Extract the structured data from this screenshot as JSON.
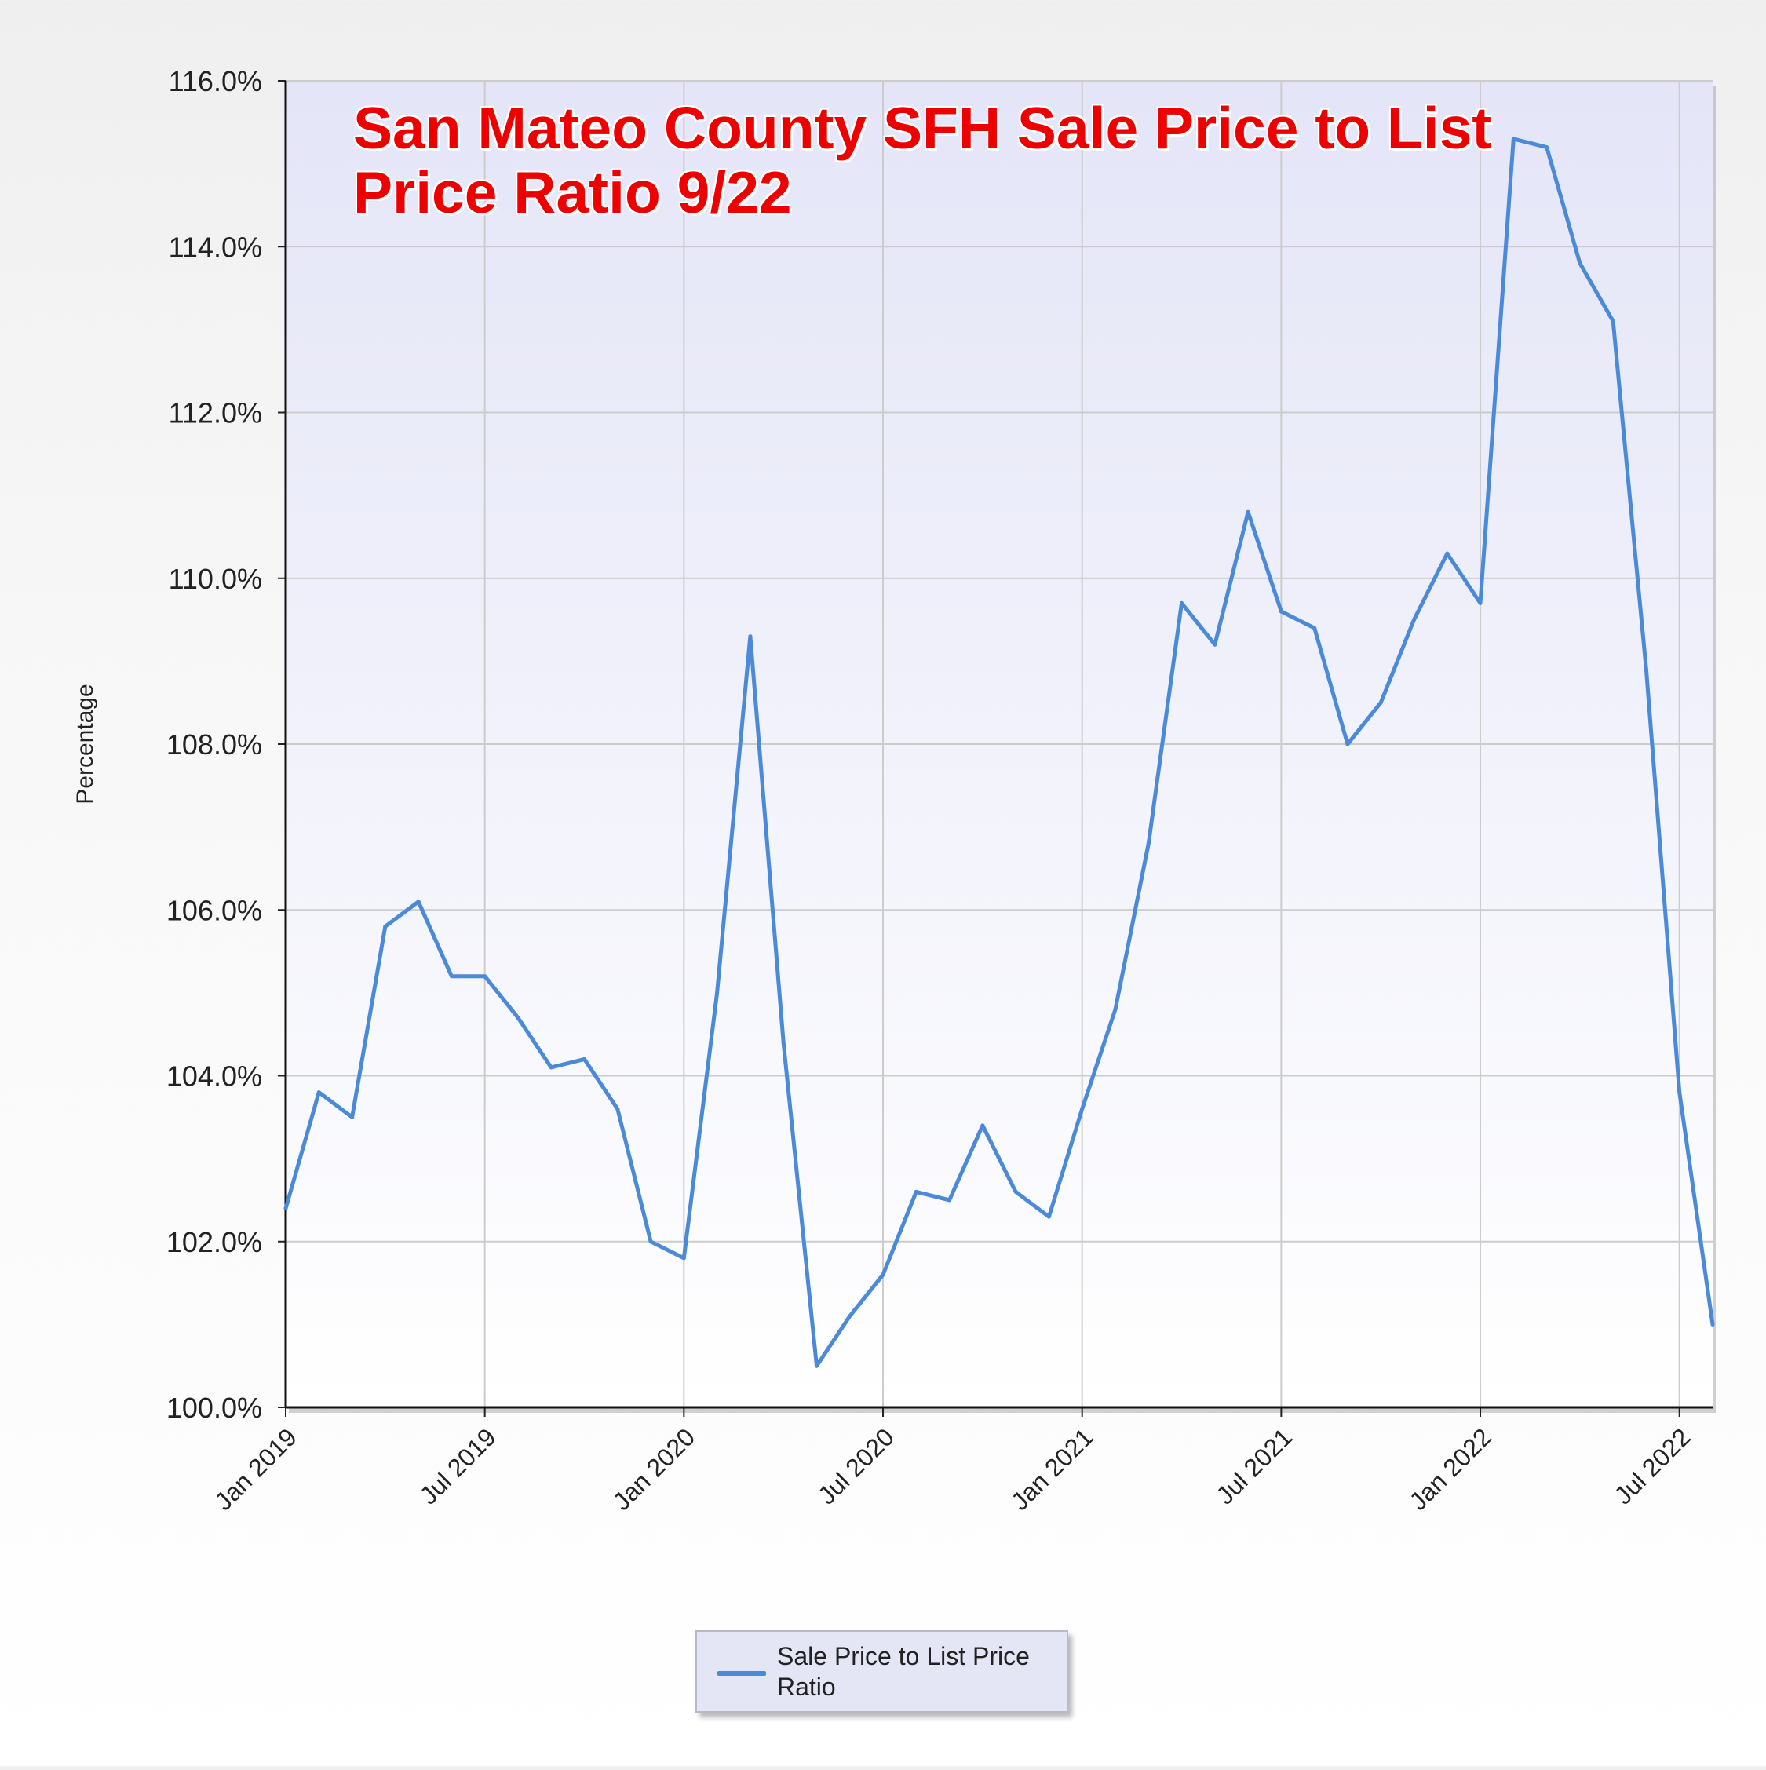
{
  "chart_data": {
    "type": "line",
    "title": "San Mateo County SFH Sale Price to List Price Ratio 9/22",
    "xlabel": "",
    "ylabel": "Percentage",
    "ylim": [
      100,
      116
    ],
    "y_ticks": [
      "100.0%",
      "102.0%",
      "104.0%",
      "106.0%",
      "108.0%",
      "110.0%",
      "112.0%",
      "114.0%",
      "116.0%"
    ],
    "x_ticks": [
      "Jan 2019",
      "Jul 2019",
      "Jan 2020",
      "Jul 2020",
      "Jan 2021",
      "Jul 2021",
      "Jan 2022",
      "Jul 2022"
    ],
    "grid": true,
    "legend_position": "bottom-center",
    "x": [
      "Jan 2019",
      "Feb 2019",
      "Mar 2019",
      "Apr 2019",
      "May 2019",
      "Jun 2019",
      "Jul 2019",
      "Aug 2019",
      "Sep 2019",
      "Oct 2019",
      "Nov 2019",
      "Dec 2019",
      "Jan 2020",
      "Feb 2020",
      "Mar 2020",
      "Apr 2020",
      "May 2020",
      "Jun 2020",
      "Jul 2020",
      "Aug 2020",
      "Sep 2020",
      "Oct 2020",
      "Nov 2020",
      "Dec 2020",
      "Jan 2021",
      "Feb 2021",
      "Mar 2021",
      "Apr 2021",
      "May 2021",
      "Jun 2021",
      "Jul 2021",
      "Aug 2021",
      "Sep 2021",
      "Oct 2021",
      "Nov 2021",
      "Dec 2021",
      "Jan 2022",
      "Feb 2022",
      "Mar 2022",
      "Apr 2022",
      "May 2022",
      "Jun 2022",
      "Jul 2022",
      "Aug 2022"
    ],
    "series": [
      {
        "name": "Sale Price to List Price Ratio",
        "color": "#4a8ad8",
        "values": [
          102.4,
          103.8,
          103.5,
          105.8,
          106.1,
          105.2,
          105.2,
          104.7,
          104.1,
          104.2,
          103.6,
          102.0,
          101.8,
          105.0,
          109.3,
          104.4,
          100.5,
          101.1,
          101.6,
          102.6,
          102.5,
          103.4,
          102.6,
          102.3,
          103.6,
          104.8,
          106.8,
          109.7,
          109.2,
          110.8,
          109.6,
          109.4,
          108.0,
          108.5,
          109.5,
          110.3,
          109.7,
          115.3,
          115.2,
          113.8,
          113.1,
          108.9,
          103.8,
          101.0
        ]
      }
    ]
  }
}
